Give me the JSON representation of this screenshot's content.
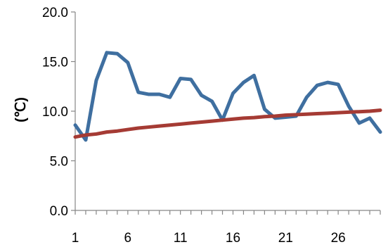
{
  "chart_data": {
    "type": "line",
    "title": "",
    "xlabel": "",
    "ylabel": "(℃)",
    "x": [
      1,
      2,
      3,
      4,
      5,
      6,
      7,
      8,
      9,
      10,
      11,
      12,
      13,
      14,
      15,
      16,
      17,
      18,
      19,
      20,
      21,
      22,
      23,
      24,
      25,
      26,
      27,
      28,
      29,
      30
    ],
    "xticks": [
      1,
      6,
      11,
      16,
      21,
      26
    ],
    "xlim": [
      1,
      30
    ],
    "ylim": [
      0,
      20
    ],
    "yticks": [
      "0.0",
      "5.0",
      "10.0",
      "15.0",
      "20.0"
    ],
    "grid": false,
    "legend": "none",
    "series": [
      {
        "color": "#3f6fa0",
        "values": [
          8.6,
          7.1,
          13.1,
          15.9,
          15.8,
          14.9,
          11.9,
          11.7,
          11.7,
          11.4,
          13.3,
          13.2,
          11.6,
          11.0,
          9.1,
          11.8,
          12.9,
          13.6,
          10.2,
          9.3,
          9.4,
          9.5,
          11.4,
          12.6,
          12.9,
          12.7,
          10.5,
          8.8,
          9.3,
          7.9
        ]
      },
      {
        "color": "#a53b34",
        "values": [
          7.4,
          7.6,
          7.7,
          7.9,
          8.0,
          8.15,
          8.3,
          8.4,
          8.5,
          8.6,
          8.7,
          8.8,
          8.9,
          9.0,
          9.1,
          9.2,
          9.3,
          9.35,
          9.45,
          9.5,
          9.6,
          9.65,
          9.7,
          9.75,
          9.8,
          9.85,
          9.9,
          9.95,
          10.0,
          10.1
        ]
      }
    ]
  }
}
